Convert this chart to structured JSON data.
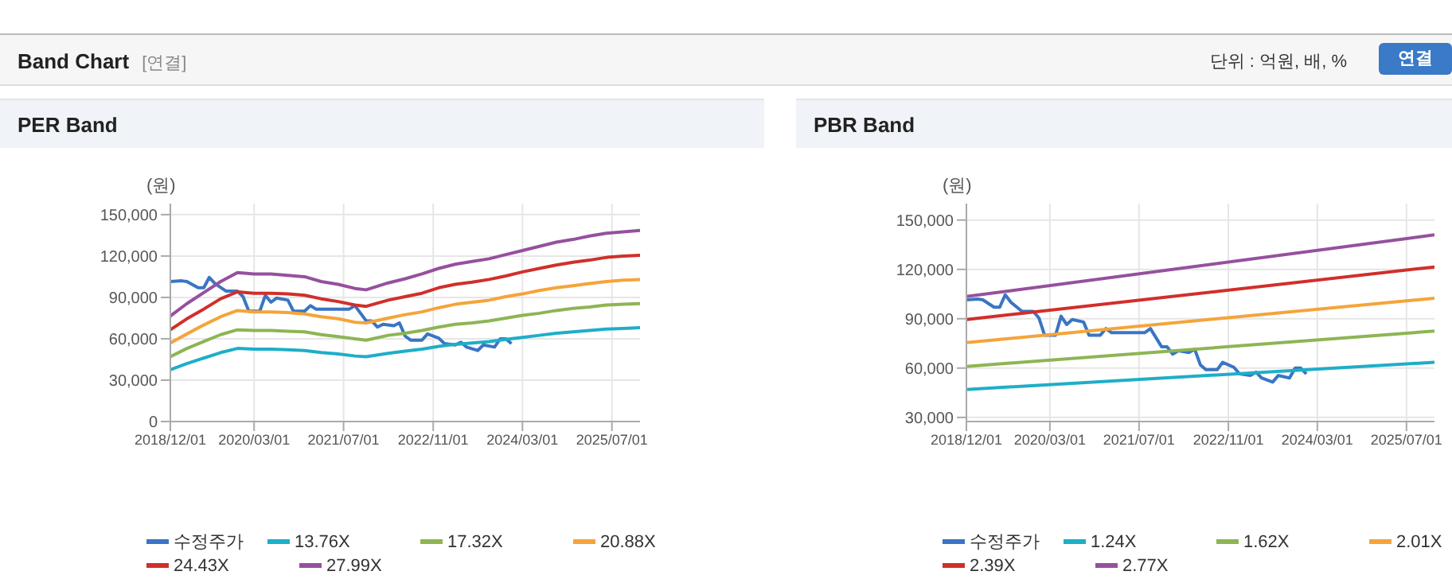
{
  "chart_data": [
    {
      "type": "line",
      "title": "PER Band",
      "ylabel": "(원)",
      "annotations": [
        "Band Chart",
        "[연결]",
        "단위 : 억원, 배, %",
        "연결"
      ],
      "legend": "bottom",
      "grid": true,
      "marker": "none",
      "xlim": [
        "2018-12-01",
        "2025-12-01"
      ],
      "xticks": [
        {
          "value": "2018-12-01",
          "label": "2018/12/01"
        },
        {
          "value": "2020-03-01",
          "label": "2020/03/01"
        },
        {
          "value": "2021-07-01",
          "label": "2021/07/01"
        },
        {
          "value": "2022-11-01",
          "label": "2022/11/01"
        },
        {
          "value": "2024-03-01",
          "label": "2024/03/01"
        },
        {
          "value": "2025-07-01",
          "label": "2025/07/01"
        }
      ],
      "ylim": [
        0,
        158000
      ],
      "yticks": [
        0,
        {
          "value": 30000,
          "label": "30,000"
        },
        {
          "value": 60000,
          "label": "60,000"
        },
        {
          "value": 90000,
          "label": "90,000"
        },
        {
          "value": 120000,
          "label": "120,000"
        },
        {
          "value": 150000,
          "label": "150,000"
        }
      ],
      "x": [
        "2018-12",
        "2019-03",
        "2019-06",
        "2019-09",
        "2019-12",
        "2020-03",
        "2020-06",
        "2020-09",
        "2020-12",
        "2021-03",
        "2021-06",
        "2021-09",
        "2021-11",
        "2022-03",
        "2022-06",
        "2022-09",
        "2022-12",
        "2023-03",
        "2023-06",
        "2023-09",
        "2023-12",
        "2024-03",
        "2024-06",
        "2024-09",
        "2024-12",
        "2025-03",
        "2025-06",
        "2025-09",
        "2025-12"
      ],
      "series": [
        {
          "name": "수정주가",
          "color": "#3a75c4",
          "x": [
            "2018-12",
            "2019-02",
            "2019-03",
            "2019-05",
            "2019-06",
            "2019-07",
            "2019-08",
            "2019-10",
            "2019-12",
            "2020-01",
            "2020-02",
            "2020-04",
            "2020-05",
            "2020-06",
            "2020-07",
            "2020-09",
            "2020-10",
            "2020-12",
            "2021-01",
            "2021-02",
            "2021-04",
            "2021-08",
            "2021-09",
            "2021-11",
            "2021-12",
            "2022-01",
            "2022-02",
            "2022-04",
            "2022-05",
            "2022-06",
            "2022-07",
            "2022-09",
            "2022-10",
            "2022-12",
            "2023-01",
            "2023-03",
            "2023-04",
            "2023-05",
            "2023-07",
            "2023-08",
            "2023-10",
            "2023-11",
            "2023-12",
            "2024-01"
          ],
          "values": [
            101500,
            102000,
            101500,
            97000,
            97000,
            104500,
            100000,
            94500,
            94500,
            90500,
            80000,
            80000,
            91500,
            86500,
            89500,
            88000,
            80000,
            80000,
            84000,
            81500,
            81500,
            81500,
            84000,
            73000,
            73000,
            68500,
            70500,
            69500,
            71500,
            62000,
            59000,
            59000,
            63500,
            60500,
            56500,
            55500,
            57500,
            54000,
            51500,
            55500,
            54000,
            60000,
            60000,
            56500
          ]
        },
        {
          "name": "13.76X",
          "color": "#1eaec8",
          "values": [
            37500,
            42000,
            46000,
            50000,
            53000,
            52500,
            52500,
            52000,
            51500,
            50000,
            49000,
            47500,
            47000,
            49500,
            51000,
            52500,
            54500,
            56000,
            57000,
            58000,
            59500,
            61000,
            62500,
            64000,
            65000,
            66000,
            67000,
            67500,
            68000
          ]
        },
        {
          "name": "17.32X",
          "color": "#8db554",
          "values": [
            47000,
            53000,
            58000,
            63000,
            66500,
            66000,
            66000,
            65500,
            65000,
            63000,
            61500,
            60000,
            59000,
            62500,
            64000,
            66000,
            68500,
            70500,
            71500,
            73000,
            75000,
            77000,
            78500,
            80500,
            82000,
            83000,
            84500,
            85000,
            85500
          ]
        },
        {
          "name": "20.88X",
          "color": "#f5a43a",
          "values": [
            57000,
            63500,
            70000,
            76000,
            80500,
            79500,
            79500,
            79000,
            78000,
            76000,
            74500,
            72000,
            71500,
            75000,
            77500,
            79500,
            82500,
            85000,
            86500,
            88000,
            90500,
            92500,
            95000,
            97000,
            98500,
            100000,
            101500,
            102500,
            103000
          ]
        },
        {
          "name": "24.43X",
          "color": "#d12f2a",
          "values": [
            66500,
            74500,
            81500,
            89000,
            94000,
            93000,
            93000,
            92500,
            91500,
            89000,
            87000,
            84500,
            83500,
            88000,
            90500,
            93000,
            97000,
            99500,
            101000,
            103000,
            105500,
            108500,
            111000,
            113500,
            115500,
            117000,
            119000,
            120000,
            120500
          ]
        },
        {
          "name": "27.99X",
          "color": "#96509e",
          "values": [
            76500,
            85500,
            93500,
            101500,
            108000,
            107000,
            107000,
            106000,
            105000,
            101500,
            99500,
            96500,
            95500,
            100500,
            103500,
            107000,
            111000,
            114000,
            116000,
            118000,
            121000,
            124000,
            127000,
            130000,
            132000,
            134500,
            136500,
            137500,
            138500
          ]
        }
      ]
    },
    {
      "type": "line",
      "title": "PBR Band",
      "ylabel": "(원)",
      "legend": "bottom",
      "grid": true,
      "marker": "none",
      "xlim": [
        "2018-12-01",
        "2025-12-01"
      ],
      "xticks": [
        {
          "value": "2018-12-01",
          "label": "2018/12/01"
        },
        {
          "value": "2020-03-01",
          "label": "2020/03/01"
        },
        {
          "value": "2021-07-01",
          "label": "2021/07/01"
        },
        {
          "value": "2022-11-01",
          "label": "2022/11/01"
        },
        {
          "value": "2024-03-01",
          "label": "2024/03/01"
        },
        {
          "value": "2025-07-01",
          "label": "2025/07/01"
        }
      ],
      "ylim": [
        27500,
        160000
      ],
      "yticks": [
        {
          "value": 30000,
          "label": "30,000"
        },
        {
          "value": 60000,
          "label": "60,000"
        },
        {
          "value": 90000,
          "label": "90,000"
        },
        {
          "value": 120000,
          "label": "120,000"
        },
        {
          "value": 150000,
          "label": "150,000"
        }
      ],
      "x": [
        "2018-12",
        "2025-12"
      ],
      "series": [
        {
          "name": "수정주가",
          "color": "#3a75c4",
          "x": [
            "2018-12",
            "2019-02",
            "2019-03",
            "2019-05",
            "2019-06",
            "2019-07",
            "2019-08",
            "2019-10",
            "2019-12",
            "2020-01",
            "2020-02",
            "2020-04",
            "2020-05",
            "2020-06",
            "2020-07",
            "2020-09",
            "2020-10",
            "2020-12",
            "2021-01",
            "2021-02",
            "2021-04",
            "2021-08",
            "2021-09",
            "2021-11",
            "2021-12",
            "2022-01",
            "2022-02",
            "2022-04",
            "2022-05",
            "2022-06",
            "2022-07",
            "2022-09",
            "2022-10",
            "2022-12",
            "2023-01",
            "2023-03",
            "2023-04",
            "2023-05",
            "2023-07",
            "2023-08",
            "2023-10",
            "2023-11",
            "2023-12",
            "2024-01"
          ],
          "values": [
            101500,
            102000,
            101500,
            97000,
            97000,
            104500,
            100000,
            94500,
            94500,
            90500,
            80000,
            80000,
            91500,
            86500,
            89500,
            88000,
            80000,
            80000,
            84000,
            81500,
            81500,
            81500,
            84000,
            73000,
            73000,
            68500,
            70500,
            69500,
            71500,
            62000,
            59000,
            59000,
            63500,
            60500,
            56500,
            55500,
            57500,
            54000,
            51500,
            55500,
            54000,
            60000,
            60000,
            56500
          ]
        },
        {
          "name": "1.24X",
          "color": "#1eaec8",
          "values": [
            47000,
            63500
          ]
        },
        {
          "name": "1.62X",
          "color": "#8db554",
          "values": [
            61000,
            82500
          ]
        },
        {
          "name": "2.01X",
          "color": "#f5a43a",
          "values": [
            75500,
            102500
          ]
        },
        {
          "name": "2.39X",
          "color": "#d12f2a",
          "values": [
            89500,
            121500
          ]
        },
        {
          "name": "2.77X",
          "color": "#96509e",
          "values": [
            103500,
            141000
          ]
        }
      ]
    }
  ]
}
